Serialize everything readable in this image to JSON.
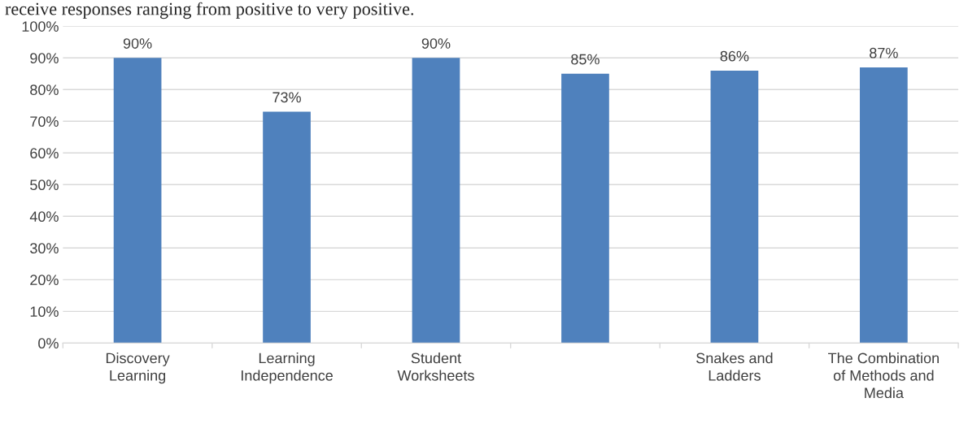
{
  "chart_data": {
    "type": "bar",
    "annotations": [
      "receive responses ranging from positive to very positive."
    ],
    "categories": [
      "Discovery Learning",
      "Learning Independence",
      "Student Worksheets",
      null,
      "Snakes and Ladders",
      "The Combination of Methods and Media"
    ],
    "values": [
      90,
      73,
      90,
      85,
      86,
      87
    ],
    "value_labels": [
      "90%",
      "73%",
      "90%",
      "85%",
      "86%",
      "87%"
    ],
    "color": "#4f81bd",
    "ylim": [
      0,
      100
    ],
    "yticks": [
      {
        "value": 0,
        "label": "0%"
      },
      {
        "value": 10,
        "label": "10%"
      },
      {
        "value": 20,
        "label": "20%"
      },
      {
        "value": 30,
        "label": "30%"
      },
      {
        "value": 40,
        "label": "40%"
      },
      {
        "value": 50,
        "label": "50%"
      },
      {
        "value": 60,
        "label": "60%"
      },
      {
        "value": 70,
        "label": "70%"
      },
      {
        "value": 80,
        "label": "80%"
      },
      {
        "value": 90,
        "label": "90%"
      },
      {
        "value": 100,
        "label": "100%"
      }
    ],
    "grid": "y",
    "legend": false
  }
}
